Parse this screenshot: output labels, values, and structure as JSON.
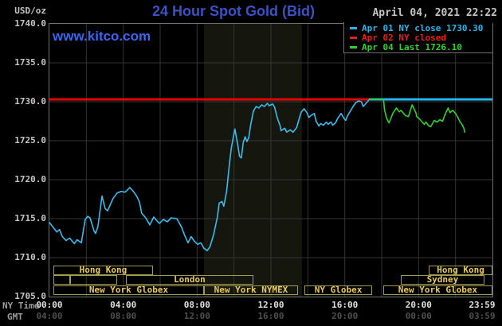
{
  "header": {
    "title": "24 Hour Spot Gold (Bid)",
    "datetime": "April 04, 2021 22:22",
    "website": "www.kitco.com"
  },
  "axis": {
    "unit_label": "USD/oz",
    "ny_time_label": "NY Time",
    "gmt_label": "GMT",
    "y_ticks": [
      1740.0,
      1735.0,
      1730.0,
      1725.0,
      1720.0,
      1715.0,
      1710.0,
      1705.0
    ],
    "x_ticks": [
      {
        "hour": 0,
        "ny": "00:00",
        "gmt": "04:00"
      },
      {
        "hour": 4,
        "ny": "04:00",
        "gmt": "08:00"
      },
      {
        "hour": 8,
        "ny": "08:00",
        "gmt": "12:00"
      },
      {
        "hour": 12,
        "ny": "12:00",
        "gmt": "16:00"
      },
      {
        "hour": 16,
        "ny": "16:00",
        "gmt": "20:00"
      },
      {
        "hour": 20,
        "ny": "20:00",
        "gmt": "00:00"
      },
      {
        "hour": 23.983,
        "ny": "23:59",
        "gmt": "03:59"
      }
    ]
  },
  "legend": [
    {
      "label": "Apr 01 NY close 1730.30",
      "color": "#22b7f0"
    },
    {
      "label": "Apr 02 NY closed",
      "color": "#ee1c1c"
    },
    {
      "label": "Apr 04 Last 1726.10",
      "color": "#2ed32e"
    }
  ],
  "chart_data": {
    "type": "line",
    "title": "24 Hour Spot Gold (Bid)",
    "ylabel": "USD/oz",
    "xlabel": "hours (NY time)",
    "ylim": [
      1705,
      1740
    ],
    "xlim": [
      0,
      24
    ],
    "y_grid_step": 5,
    "x_grid_step": 2,
    "grid": true,
    "legend_position": "top-right",
    "session_band_hours": [
      8.37,
      13.68
    ],
    "ref_lines": [
      {
        "name": "apr02-ny-closed",
        "value": 1730.3,
        "from_hour": 0,
        "to_hour": 17.35,
        "color": "#e60505"
      },
      {
        "name": "apr01-ny-close",
        "value": 1730.3,
        "from_hour": 17.35,
        "to_hour": 24,
        "color": "#22b7f0"
      }
    ],
    "series": [
      {
        "name": "Apr 01 spot gold bid",
        "color": "#38bdee",
        "points": [
          [
            0,
            1714.5
          ],
          [
            0.2,
            1713.9
          ],
          [
            0.4,
            1713.3
          ],
          [
            0.55,
            1713.6
          ],
          [
            0.7,
            1712.7
          ],
          [
            0.9,
            1712.2
          ],
          [
            1.1,
            1712.5
          ],
          [
            1.35,
            1711.8
          ],
          [
            1.5,
            1712.3
          ],
          [
            1.73,
            1711.9
          ],
          [
            1.94,
            1714.9
          ],
          [
            2.07,
            1715.3
          ],
          [
            2.2,
            1715.1
          ],
          [
            2.42,
            1713.4
          ],
          [
            2.5,
            1713.1
          ],
          [
            2.63,
            1714.0
          ],
          [
            2.85,
            1717.9
          ],
          [
            3.02,
            1716.3
          ],
          [
            3.15,
            1716.0
          ],
          [
            3.45,
            1717.6
          ],
          [
            3.67,
            1718.3
          ],
          [
            3.88,
            1718.5
          ],
          [
            4.1,
            1718.4
          ],
          [
            4.36,
            1719.0
          ],
          [
            4.58,
            1718.4
          ],
          [
            4.75,
            1717.8
          ],
          [
            4.88,
            1717.1
          ],
          [
            5.0,
            1715.7
          ],
          [
            5.22,
            1715.1
          ],
          [
            5.44,
            1714.2
          ],
          [
            5.65,
            1715.2
          ],
          [
            5.83,
            1714.7
          ],
          [
            5.96,
            1714.4
          ],
          [
            6.17,
            1714.9
          ],
          [
            6.39,
            1714.6
          ],
          [
            6.6,
            1715.1
          ],
          [
            6.9,
            1715.0
          ],
          [
            7.16,
            1713.9
          ],
          [
            7.34,
            1712.8
          ],
          [
            7.51,
            1711.9
          ],
          [
            7.68,
            1712.7
          ],
          [
            7.85,
            1712.1
          ],
          [
            8.03,
            1711.7
          ],
          [
            8.2,
            1711.9
          ],
          [
            8.37,
            1711.2
          ],
          [
            8.55,
            1710.9
          ],
          [
            8.7,
            1711.4
          ],
          [
            8.9,
            1713.0
          ],
          [
            9.1,
            1715.2
          ],
          [
            9.2,
            1717.0
          ],
          [
            9.35,
            1717.2
          ],
          [
            9.45,
            1716.6
          ],
          [
            9.6,
            1718.5
          ],
          [
            9.75,
            1722.0
          ],
          [
            9.85,
            1724.0
          ],
          [
            9.95,
            1725.3
          ],
          [
            10.05,
            1726.5
          ],
          [
            10.2,
            1724.5
          ],
          [
            10.3,
            1723.0
          ],
          [
            10.4,
            1722.8
          ],
          [
            10.5,
            1724.8
          ],
          [
            10.6,
            1725.5
          ],
          [
            10.7,
            1724.9
          ],
          [
            10.8,
            1725.4
          ],
          [
            10.9,
            1727.0
          ],
          [
            11.05,
            1728.8
          ],
          [
            11.2,
            1729.4
          ],
          [
            11.35,
            1729.2
          ],
          [
            11.5,
            1729.6
          ],
          [
            11.65,
            1729.4
          ],
          [
            11.8,
            1729.8
          ],
          [
            11.9,
            1729.5
          ],
          [
            12.1,
            1729.7
          ],
          [
            12.2,
            1729.3
          ],
          [
            12.35,
            1727.9
          ],
          [
            12.5,
            1726.9
          ],
          [
            12.55,
            1726.3
          ],
          [
            12.75,
            1726.6
          ],
          [
            12.85,
            1726.1
          ],
          [
            13.05,
            1726.4
          ],
          [
            13.2,
            1726.1
          ],
          [
            13.4,
            1726.7
          ],
          [
            13.5,
            1727.6
          ],
          [
            13.65,
            1728.7
          ],
          [
            13.8,
            1729.1
          ],
          [
            13.95,
            1728.6
          ],
          [
            14.05,
            1728.0
          ],
          [
            14.2,
            1728.3
          ],
          [
            14.35,
            1728.5
          ],
          [
            14.45,
            1727.5
          ],
          [
            14.6,
            1726.9
          ],
          [
            14.7,
            1727.2
          ],
          [
            14.85,
            1727.0
          ],
          [
            15.0,
            1727.4
          ],
          [
            15.1,
            1727.1
          ],
          [
            15.25,
            1727.4
          ],
          [
            15.35,
            1727.0
          ],
          [
            15.5,
            1727.3
          ],
          [
            15.6,
            1727.8
          ],
          [
            15.8,
            1728.5
          ],
          [
            15.95,
            1727.9
          ],
          [
            16.05,
            1727.6
          ],
          [
            16.15,
            1728.2
          ],
          [
            16.3,
            1728.8
          ],
          [
            16.45,
            1729.4
          ],
          [
            16.6,
            1729.9
          ],
          [
            16.75,
            1730.1
          ],
          [
            16.9,
            1730.0
          ],
          [
            17.0,
            1729.4
          ],
          [
            17.15,
            1729.8
          ],
          [
            17.3,
            1730.2
          ],
          [
            17.35,
            1730.4
          ]
        ]
      },
      {
        "name": "Apr 04 spot gold bid",
        "color": "#2ed32e",
        "points": [
          [
            17.35,
            1730.3
          ],
          [
            18.1,
            1730.3
          ],
          [
            18.15,
            1729.0
          ],
          [
            18.25,
            1728.0
          ],
          [
            18.35,
            1727.5
          ],
          [
            18.4,
            1727.3
          ],
          [
            18.6,
            1728.5
          ],
          [
            18.8,
            1729.2
          ],
          [
            18.95,
            1728.7
          ],
          [
            19.05,
            1728.9
          ],
          [
            19.3,
            1728.2
          ],
          [
            19.45,
            1728.1
          ],
          [
            19.65,
            1729.6
          ],
          [
            19.85,
            1728.6
          ],
          [
            19.9,
            1728.1
          ],
          [
            20.05,
            1727.8
          ],
          [
            20.3,
            1727.1
          ],
          [
            20.4,
            1727.4
          ],
          [
            20.55,
            1726.9
          ],
          [
            20.65,
            1726.8
          ],
          [
            20.85,
            1727.6
          ],
          [
            21.0,
            1727.4
          ],
          [
            21.15,
            1727.7
          ],
          [
            21.3,
            1727.5
          ],
          [
            21.4,
            1728.2
          ],
          [
            21.6,
            1729.2
          ],
          [
            21.7,
            1728.6
          ],
          [
            21.85,
            1728.9
          ],
          [
            22.0,
            1728.5
          ],
          [
            22.1,
            1728.1
          ],
          [
            22.25,
            1727.4
          ],
          [
            22.35,
            1727.1
          ],
          [
            22.45,
            1726.6
          ],
          [
            22.5,
            1726.1
          ]
        ]
      }
    ]
  },
  "sessions": {
    "rows": [
      {
        "bars": [
          {
            "label": "Hong Kong",
            "from": 0.22,
            "to": 5.6
          },
          {
            "label": "Hong Kong",
            "from": 20.55,
            "to": 24
          }
        ]
      },
      {
        "bars": [
          {
            "label": "",
            "from": 0.22,
            "to": 1.12
          },
          {
            "label": "",
            "from": 1.12,
            "to": 3.67
          },
          {
            "label": "London",
            "from": 4.14,
            "to": 11.05
          },
          {
            "label": "Sydney",
            "from": 19.03,
            "to": 23.57
          }
        ]
      },
      {
        "bars": [
          {
            "label": "New York Globex",
            "from": 0.22,
            "to": 8.37
          },
          {
            "label": "New York NYMEX",
            "from": 8.37,
            "to": 13.47
          },
          {
            "label": "NY Globex",
            "from": 13.82,
            "to": 17.48
          },
          {
            "label": "New York Globex",
            "from": 18.08,
            "to": 24
          }
        ]
      }
    ]
  },
  "colors": {
    "background": "#000000",
    "title_blue": "#3a52c9",
    "link_blue": "#3c64f2",
    "cyan_ref": "#22b7f0",
    "cyan_line": "#38bdee",
    "red": "#e60505",
    "green": "#2ed32e",
    "band": "#15170e",
    "grid": "#343434",
    "plot_border": "#6f6f6f",
    "session_border": "#a39a4e",
    "session_text": "#e8c95e",
    "y_tick_text": "#c6c6c6",
    "ny_tick_text": "#e0e0e0",
    "gmt_tick_text": "#4f4f4f",
    "axis_row_label": "#9e9e9e",
    "datetime_text": "#c4c4c4"
  }
}
